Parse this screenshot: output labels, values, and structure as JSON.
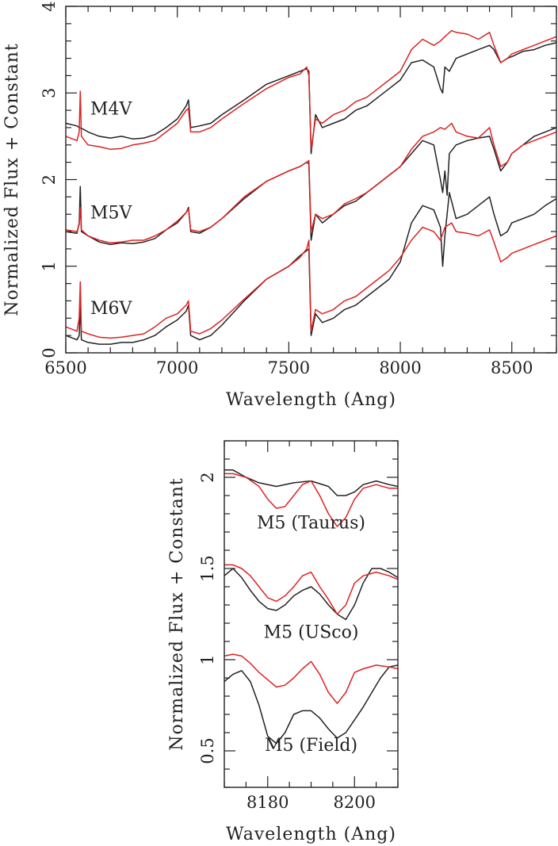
{
  "chart_data": [
    {
      "type": "line",
      "xlabel": "Wavelength (Ang)",
      "ylabel": "Normalized Flux + Constant",
      "xlim": [
        6500,
        8700
      ],
      "ylim": [
        0,
        4
      ],
      "xticks": [
        6500,
        7000,
        7500,
        8000,
        8500
      ],
      "yticks": [
        0,
        1,
        2,
        3,
        4
      ],
      "colors": {
        "black": "#222222",
        "red": "#dd2222"
      },
      "annotations": [
        {
          "text": "M4V",
          "x": 6610,
          "y": 2.75
        },
        {
          "text": "M5V",
          "x": 6610,
          "y": 1.55
        },
        {
          "text": "M6V",
          "x": 6610,
          "y": 0.45
        }
      ],
      "series": [
        {
          "color": "black",
          "x": [
            6500,
            6550,
            6560,
            6580,
            6600,
            6650,
            6700,
            6750,
            6800,
            6850,
            6900,
            6950,
            7000,
            7040,
            7050,
            7060,
            7100,
            7150,
            7200,
            7300,
            7400,
            7500,
            7550,
            7580,
            7590,
            7600,
            7620,
            7650,
            7700,
            7750,
            7800,
            7850,
            7900,
            7950,
            8000,
            8050,
            8100,
            8150,
            8180,
            8190,
            8200,
            8220,
            8250,
            8300,
            8350,
            8400,
            8420,
            8450,
            8480,
            8500,
            8550,
            8600,
            8650,
            8700
          ],
          "y": [
            2.65,
            2.62,
            2.6,
            2.58,
            2.55,
            2.5,
            2.48,
            2.5,
            2.47,
            2.48,
            2.52,
            2.6,
            2.7,
            2.85,
            2.92,
            2.6,
            2.62,
            2.65,
            2.75,
            2.92,
            3.1,
            3.2,
            3.25,
            3.28,
            3.25,
            2.3,
            2.75,
            2.6,
            2.65,
            2.7,
            2.8,
            2.85,
            2.95,
            3.05,
            3.15,
            3.35,
            3.38,
            3.3,
            3.05,
            3.0,
            3.3,
            3.25,
            3.4,
            3.45,
            3.5,
            3.55,
            3.5,
            3.35,
            3.4,
            3.42,
            3.48,
            3.5,
            3.55,
            3.58
          ]
        },
        {
          "color": "red",
          "x": [
            6500,
            6550,
            6560,
            6565,
            6570,
            6600,
            6650,
            6700,
            6750,
            6800,
            6850,
            6900,
            6950,
            7000,
            7040,
            7050,
            7060,
            7100,
            7150,
            7200,
            7300,
            7400,
            7500,
            7550,
            7580,
            7590,
            7600,
            7620,
            7650,
            7700,
            7750,
            7800,
            7850,
            7900,
            7950,
            8000,
            8050,
            8100,
            8150,
            8180,
            8200,
            8230,
            8250,
            8300,
            8350,
            8400,
            8420,
            8450,
            8480,
            8500,
            8550,
            8600,
            8650,
            8700
          ],
          "y": [
            2.5,
            2.45,
            2.55,
            3.02,
            2.5,
            2.4,
            2.38,
            2.35,
            2.36,
            2.4,
            2.42,
            2.45,
            2.55,
            2.65,
            2.8,
            2.82,
            2.55,
            2.55,
            2.6,
            2.7,
            2.88,
            3.05,
            3.18,
            3.22,
            3.3,
            3.2,
            2.35,
            2.7,
            2.65,
            2.75,
            2.8,
            2.9,
            2.95,
            3.05,
            3.15,
            3.25,
            3.5,
            3.62,
            3.55,
            3.6,
            3.65,
            3.72,
            3.7,
            3.68,
            3.62,
            3.7,
            3.55,
            3.35,
            3.4,
            3.45,
            3.5,
            3.55,
            3.6,
            3.65
          ]
        },
        {
          "color": "black",
          "x": [
            6500,
            6550,
            6560,
            6565,
            6570,
            6600,
            6650,
            6700,
            6750,
            6800,
            6850,
            6900,
            6950,
            7000,
            7040,
            7050,
            7060,
            7100,
            7150,
            7200,
            7300,
            7400,
            7500,
            7550,
            7580,
            7590,
            7600,
            7620,
            7650,
            7700,
            7750,
            7800,
            7850,
            7900,
            7950,
            8000,
            8050,
            8100,
            8150,
            8180,
            8190,
            8200,
            8210,
            8220,
            8250,
            8300,
            8350,
            8400,
            8420,
            8450,
            8480,
            8500,
            8550,
            8600,
            8650,
            8700
          ],
          "y": [
            1.4,
            1.38,
            1.5,
            1.92,
            1.4,
            1.35,
            1.28,
            1.25,
            1.27,
            1.26,
            1.28,
            1.32,
            1.42,
            1.5,
            1.62,
            1.68,
            1.4,
            1.38,
            1.45,
            1.55,
            1.78,
            1.98,
            2.1,
            2.15,
            2.2,
            2.18,
            1.3,
            1.6,
            1.5,
            1.6,
            1.7,
            1.75,
            1.85,
            1.95,
            2.05,
            2.15,
            2.3,
            2.45,
            2.4,
            2.0,
            1.85,
            2.1,
            1.82,
            2.3,
            2.4,
            2.45,
            2.48,
            2.5,
            2.35,
            2.1,
            2.2,
            2.3,
            2.4,
            2.5,
            2.55,
            2.6
          ]
        },
        {
          "color": "red",
          "x": [
            6500,
            6550,
            6560,
            6565,
            6570,
            6600,
            6650,
            6700,
            6750,
            6800,
            6850,
            6900,
            6950,
            7000,
            7040,
            7050,
            7060,
            7100,
            7150,
            7200,
            7300,
            7400,
            7500,
            7550,
            7580,
            7590,
            7600,
            7620,
            7650,
            7700,
            7750,
            7800,
            7850,
            7900,
            7950,
            8000,
            8050,
            8100,
            8150,
            8180,
            8200,
            8230,
            8250,
            8300,
            8350,
            8400,
            8420,
            8450,
            8480,
            8500,
            8550,
            8600,
            8650,
            8700
          ],
          "y": [
            1.42,
            1.4,
            1.48,
            1.68,
            1.42,
            1.35,
            1.3,
            1.27,
            1.28,
            1.3,
            1.3,
            1.35,
            1.42,
            1.52,
            1.62,
            1.66,
            1.42,
            1.4,
            1.45,
            1.55,
            1.8,
            1.98,
            2.1,
            2.15,
            2.2,
            2.22,
            1.4,
            1.6,
            1.55,
            1.6,
            1.72,
            1.78,
            1.85,
            1.95,
            2.05,
            2.15,
            2.35,
            2.5,
            2.55,
            2.6,
            2.58,
            2.65,
            2.55,
            2.5,
            2.48,
            2.6,
            2.4,
            2.15,
            2.2,
            2.3,
            2.4,
            2.45,
            2.5,
            2.55
          ]
        },
        {
          "color": "black",
          "x": [
            6500,
            6550,
            6560,
            6565,
            6570,
            6600,
            6650,
            6700,
            6750,
            6800,
            6850,
            6900,
            6950,
            7000,
            7040,
            7050,
            7060,
            7100,
            7150,
            7200,
            7300,
            7400,
            7500,
            7550,
            7580,
            7590,
            7600,
            7620,
            7650,
            7700,
            7750,
            7800,
            7850,
            7900,
            7950,
            8000,
            8050,
            8100,
            8150,
            8180,
            8190,
            8200,
            8220,
            8250,
            8300,
            8350,
            8400,
            8420,
            8450,
            8480,
            8500,
            8550,
            8600,
            8650,
            8700
          ],
          "y": [
            0.2,
            0.15,
            0.2,
            0.55,
            0.15,
            0.12,
            0.1,
            0.1,
            0.12,
            0.12,
            0.15,
            0.2,
            0.3,
            0.38,
            0.48,
            0.55,
            0.2,
            0.15,
            0.2,
            0.32,
            0.6,
            0.85,
            1.0,
            1.12,
            1.18,
            1.2,
            0.2,
            0.45,
            0.35,
            0.4,
            0.5,
            0.55,
            0.65,
            0.75,
            0.85,
            1.05,
            1.5,
            1.7,
            1.65,
            1.45,
            1.0,
            1.35,
            1.85,
            1.55,
            1.6,
            1.7,
            1.8,
            1.6,
            1.35,
            1.4,
            1.5,
            1.55,
            1.6,
            1.7,
            1.78
          ]
        },
        {
          "color": "red",
          "x": [
            6500,
            6550,
            6560,
            6565,
            6570,
            6600,
            6650,
            6700,
            6750,
            6800,
            6850,
            6900,
            6950,
            7000,
            7040,
            7050,
            7060,
            7100,
            7150,
            7200,
            7300,
            7400,
            7500,
            7550,
            7580,
            7590,
            7600,
            7620,
            7650,
            7700,
            7750,
            7800,
            7850,
            7900,
            7950,
            8000,
            8050,
            8100,
            8150,
            8180,
            8200,
            8230,
            8250,
            8300,
            8350,
            8400,
            8420,
            8450,
            8480,
            8500,
            8550,
            8600,
            8650,
            8700
          ],
          "y": [
            0.3,
            0.25,
            0.4,
            0.82,
            0.25,
            0.22,
            0.18,
            0.17,
            0.18,
            0.2,
            0.22,
            0.3,
            0.4,
            0.45,
            0.55,
            0.6,
            0.25,
            0.22,
            0.28,
            0.38,
            0.62,
            0.85,
            1.0,
            1.1,
            1.2,
            1.3,
            0.25,
            0.5,
            0.45,
            0.5,
            0.6,
            0.65,
            0.75,
            0.85,
            0.95,
            1.1,
            1.3,
            1.45,
            1.4,
            1.3,
            1.45,
            1.5,
            1.4,
            1.38,
            1.35,
            1.42,
            1.28,
            1.05,
            1.1,
            1.15,
            1.2,
            1.25,
            1.3,
            1.35
          ]
        }
      ]
    },
    {
      "type": "line",
      "xlabel": "Wavelength (Ang)",
      "ylabel": "Normalized Flux + Constant",
      "xlim": [
        8170,
        8210
      ],
      "ylim": [
        0.3,
        2.2
      ],
      "xticks": [
        8180,
        8200
      ],
      "yticks": [
        0.5,
        1,
        1.5,
        2
      ],
      "colors": {
        "black": "#222222",
        "red": "#dd2222"
      },
      "annotations": [
        {
          "text": "M5 (Taurus)",
          "x": 8190,
          "y": 1.72
        },
        {
          "text": "M5 (USco)",
          "x": 8190,
          "y": 1.12
        },
        {
          "text": "M5 (Field)",
          "x": 8190,
          "y": 0.5
        }
      ],
      "series": [
        {
          "color": "black",
          "x": [
            8170,
            8172,
            8175,
            8178,
            8182,
            8186,
            8190,
            8194,
            8196,
            8198,
            8200,
            8202,
            8205,
            8208,
            8210
          ],
          "y": [
            2.04,
            2.04,
            2.0,
            1.97,
            1.95,
            1.97,
            1.98,
            1.95,
            1.9,
            1.9,
            1.92,
            1.96,
            1.98,
            1.96,
            1.95
          ]
        },
        {
          "color": "red",
          "x": [
            8170,
            8172,
            8175,
            8178,
            8180,
            8182,
            8184,
            8186,
            8188,
            8190,
            8192,
            8194,
            8196,
            8198,
            8200,
            8202,
            8205,
            8208,
            8210
          ],
          "y": [
            2.02,
            2.02,
            2.0,
            1.95,
            1.88,
            1.83,
            1.84,
            1.9,
            1.96,
            1.98,
            1.9,
            1.8,
            1.73,
            1.78,
            1.88,
            1.94,
            1.96,
            1.94,
            1.94
          ]
        },
        {
          "color": "black",
          "x": [
            8170,
            8172,
            8174,
            8176,
            8178,
            8180,
            8182,
            8184,
            8186,
            8188,
            8190,
            8192,
            8194,
            8196,
            8198,
            8200,
            8202,
            8204,
            8206,
            8208,
            8210
          ],
          "y": [
            1.46,
            1.5,
            1.45,
            1.38,
            1.32,
            1.28,
            1.27,
            1.3,
            1.35,
            1.38,
            1.4,
            1.36,
            1.3,
            1.25,
            1.22,
            1.3,
            1.42,
            1.5,
            1.5,
            1.48,
            1.45
          ]
        },
        {
          "color": "red",
          "x": [
            8170,
            8172,
            8174,
            8176,
            8178,
            8180,
            8182,
            8184,
            8186,
            8188,
            8190,
            8192,
            8194,
            8196,
            8198,
            8200,
            8202,
            8205,
            8208,
            8210
          ],
          "y": [
            1.52,
            1.52,
            1.5,
            1.46,
            1.4,
            1.34,
            1.32,
            1.35,
            1.4,
            1.46,
            1.48,
            1.4,
            1.33,
            1.25,
            1.3,
            1.42,
            1.46,
            1.48,
            1.46,
            1.44
          ]
        },
        {
          "color": "black",
          "x": [
            8170,
            8172,
            8174,
            8176,
            8178,
            8180,
            8182,
            8184,
            8186,
            8188,
            8190,
            8192,
            8194,
            8196,
            8198,
            8200,
            8202,
            8204,
            8206,
            8208,
            8210
          ],
          "y": [
            0.88,
            0.92,
            0.94,
            0.88,
            0.75,
            0.58,
            0.54,
            0.6,
            0.7,
            0.72,
            0.72,
            0.68,
            0.62,
            0.57,
            0.6,
            0.67,
            0.74,
            0.82,
            0.9,
            0.96,
            0.97
          ]
        },
        {
          "color": "red",
          "x": [
            8170,
            8172,
            8174,
            8176,
            8178,
            8180,
            8182,
            8184,
            8186,
            8188,
            8190,
            8192,
            8194,
            8196,
            8198,
            8200,
            8202,
            8205,
            8208,
            8210
          ],
          "y": [
            1.02,
            1.03,
            1.02,
            0.98,
            0.93,
            0.89,
            0.85,
            0.86,
            0.9,
            0.95,
            0.99,
            0.92,
            0.82,
            0.76,
            0.82,
            0.93,
            0.95,
            0.97,
            0.96,
            0.95
          ]
        }
      ]
    }
  ]
}
